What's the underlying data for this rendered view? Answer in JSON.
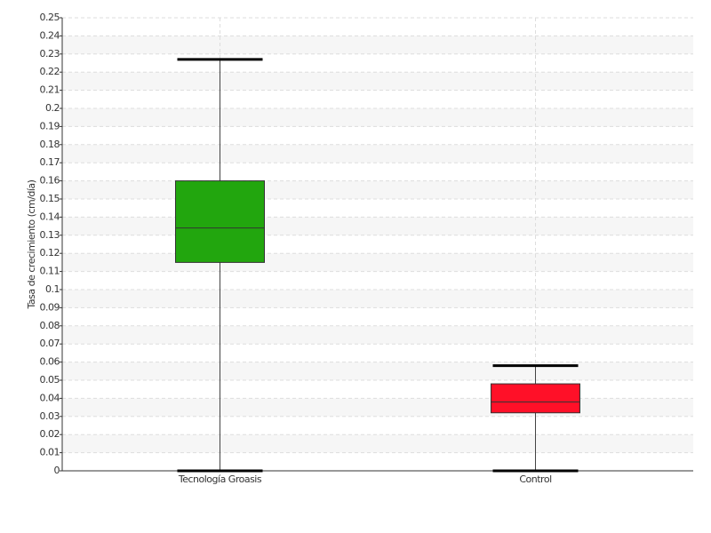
{
  "chart_data": {
    "type": "box",
    "y_label": "Tasa de crecimiento (cm/día)",
    "categories": [
      "Tecnología Groasis",
      "Control"
    ],
    "boxes": [
      {
        "min": 0,
        "q1": 0.115,
        "median": 0.134,
        "q3": 0.16,
        "max": 0.227
      },
      {
        "min": 0,
        "q1": 0.032,
        "median": 0.038,
        "q3": 0.048,
        "max": 0.058
      }
    ],
    "colors": [
      "#22a60e",
      "#ff1028"
    ],
    "ylim": [
      0,
      0.25
    ],
    "yticks": [
      0,
      0.01,
      0.02,
      0.03,
      0.04,
      0.05,
      0.06,
      0.07,
      0.08,
      0.09,
      0.1,
      0.11,
      0.12,
      0.13,
      0.14,
      0.15,
      0.16,
      0.17,
      0.18,
      0.19,
      0.2,
      0.21,
      0.22,
      0.23,
      0.24,
      0.25
    ],
    "grid": true
  }
}
